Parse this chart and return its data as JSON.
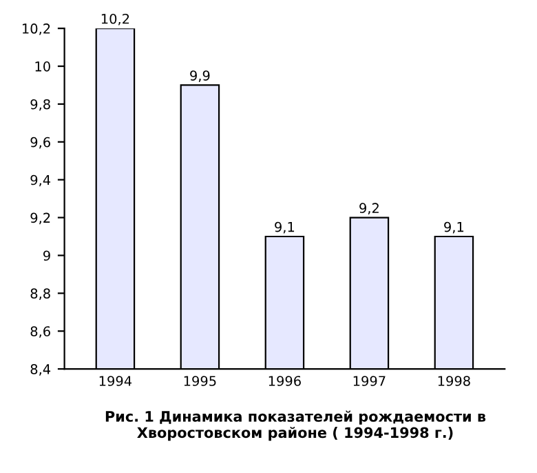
{
  "chart_data": {
    "type": "bar",
    "categories": [
      "1994",
      "1995",
      "1996",
      "1997",
      "1998"
    ],
    "values": [
      10.2,
      9.9,
      9.1,
      9.2,
      9.1
    ],
    "value_labels": [
      "10,2",
      "9,9",
      "9,1",
      "9,2",
      "9,1"
    ],
    "color": "#e6e8ff",
    "ylim": [
      8.4,
      10.2
    ],
    "yticks": [
      {
        "value": 8.4,
        "label": "8,4"
      },
      {
        "value": 8.6,
        "label": "8,6"
      },
      {
        "value": 8.8,
        "label": "8,8"
      },
      {
        "value": 9,
        "label": "9"
      },
      {
        "value": 9.2,
        "label": "9,2"
      },
      {
        "value": 9.4,
        "label": "9,4"
      },
      {
        "value": 9.6,
        "label": "9,6"
      },
      {
        "value": 9.8,
        "label": "9,8"
      },
      {
        "value": 10,
        "label": "10"
      },
      {
        "value": 10.2,
        "label": "10,2"
      }
    ],
    "grid": false,
    "annotations": [
      "Рис. 1 Динамика показателей рождаемости в Хворостовском районе ( 1994-1998 г.)"
    ]
  }
}
